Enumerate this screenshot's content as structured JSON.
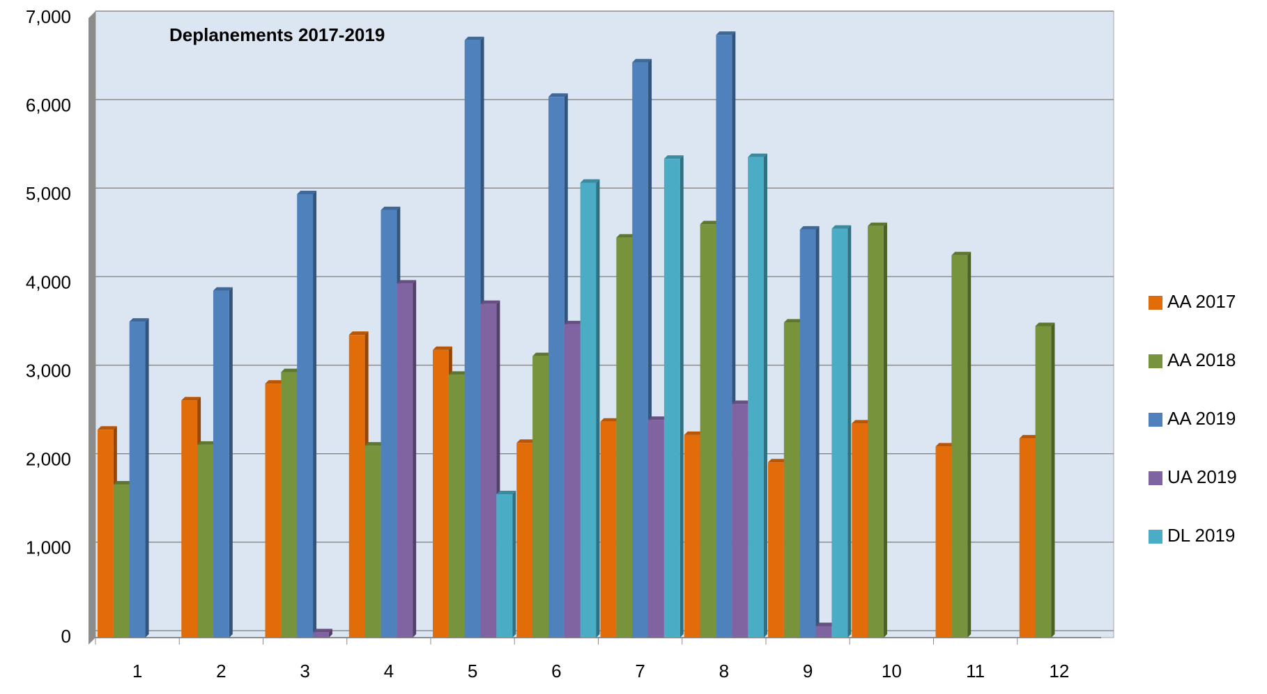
{
  "chart_data": {
    "type": "bar",
    "title": "Deplanements  2017-2019",
    "categories": [
      "1",
      "2",
      "3",
      "4",
      "5",
      "6",
      "7",
      "8",
      "9",
      "10",
      "11",
      "12"
    ],
    "series": [
      {
        "name": "AA 2017",
        "color": "#e36c0a",
        "values": [
          2350,
          2680,
          2870,
          3420,
          3250,
          2200,
          2440,
          2290,
          1980,
          2420,
          2160,
          2250
        ]
      },
      {
        "name": "AA 2018",
        "color": "#77933c",
        "values": [
          1730,
          2180,
          3000,
          2170,
          2970,
          3180,
          4520,
          4670,
          3560,
          4650,
          4320,
          3520
        ]
      },
      {
        "name": "AA 2019",
        "color": "#4f81bd",
        "values": [
          3570,
          3920,
          5010,
          4830,
          6750,
          6110,
          6500,
          6810,
          4610,
          null,
          null,
          null
        ]
      },
      {
        "name": "UA 2019",
        "color": "#8064a2",
        "values": [
          null,
          null,
          60,
          4000,
          3770,
          3540,
          2460,
          2640,
          130,
          null,
          null,
          null
        ]
      },
      {
        "name": "DL 2019",
        "color": "#4bacc6",
        "values": [
          null,
          null,
          null,
          null,
          1620,
          5140,
          5410,
          5430,
          4620,
          null,
          null,
          null
        ]
      }
    ],
    "ylim": [
      0,
      7000
    ],
    "yticks": [
      0,
      {
        "value": 1000,
        "label": "1,000"
      },
      {
        "value": 2000,
        "label": "2,000"
      },
      {
        "value": 3000,
        "label": "3,000"
      },
      {
        "value": 4000,
        "label": "4,000"
      },
      {
        "value": 5000,
        "label": "5,000"
      },
      {
        "value": 6000,
        "label": "6,000"
      },
      {
        "value": 7000,
        "label": "7,000"
      }
    ],
    "grid": true,
    "legend": "right"
  }
}
